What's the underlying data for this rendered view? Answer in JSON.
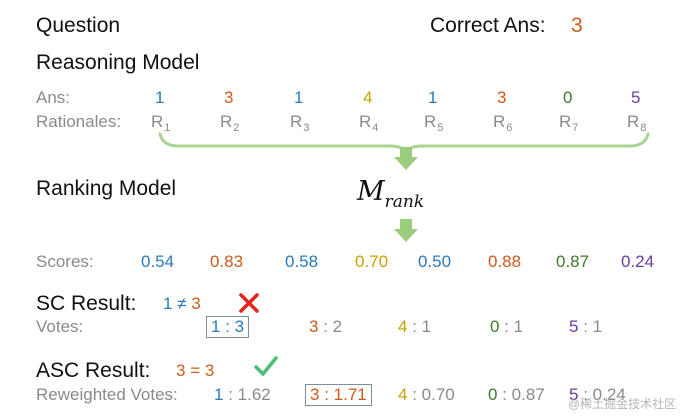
{
  "header": {
    "question_label": "Question",
    "correct_label": "Correct Ans:",
    "correct_value": "3"
  },
  "reasoning": {
    "title": "Reasoning Model",
    "ans_label": "Ans:",
    "rationales_label": "Rationales:",
    "answers": [
      "1",
      "3",
      "1",
      "4",
      "1",
      "3",
      "0",
      "5"
    ],
    "rationale_letter": "R",
    "rationale_indices": [
      "1",
      "2",
      "3",
      "4",
      "5",
      "6",
      "7",
      "8"
    ]
  },
  "ranking": {
    "title": "Ranking Model",
    "model_symbol": "M",
    "model_subscript": "rank",
    "scores_label": "Scores:",
    "scores": [
      "0.54",
      "0.83",
      "0.58",
      "0.70",
      "0.50",
      "0.88",
      "0.87",
      "0.24"
    ]
  },
  "sc": {
    "title": "SC Result:",
    "cmp_left": "1",
    "cmp_op": "≠",
    "cmp_right": "3",
    "status_icon": "cross-icon",
    "votes_label": "Votes:",
    "votes": [
      {
        "answer": "1",
        "sep": " : ",
        "value": "3",
        "boxed": true
      },
      {
        "answer": "3",
        "sep": " : ",
        "value": "2",
        "boxed": false
      },
      {
        "answer": "4",
        "sep": " : ",
        "value": "1",
        "boxed": false
      },
      {
        "answer": "0",
        "sep": " : ",
        "value": "1",
        "boxed": false
      },
      {
        "answer": "5",
        "sep": " : ",
        "value": "1",
        "boxed": false
      }
    ]
  },
  "asc": {
    "title": "ASC Result:",
    "cmp_left": "3",
    "cmp_op": "=",
    "cmp_right": "3",
    "status_icon": "check-icon",
    "votes_label": "Reweighted Votes:",
    "votes": [
      {
        "answer": "1",
        "sep": " : ",
        "value": "1.62",
        "boxed": false
      },
      {
        "answer": "3",
        "sep": " : ",
        "value": "1.71",
        "boxed": true
      },
      {
        "answer": "4",
        "sep": " : ",
        "value": "0.70",
        "boxed": false
      },
      {
        "answer": "0",
        "sep": " : ",
        "value": "0.87",
        "boxed": false
      },
      {
        "answer": "5",
        "sep": " : ",
        "value": "0.24",
        "boxed": false
      }
    ]
  },
  "colors": {
    "answer_1": "#2b7bba",
    "answer_3": "#cc5a1a",
    "answer_4": "#c9a200",
    "answer_0": "#3f7a2a",
    "answer_5": "#6a3d9a",
    "arrow_green": "#9acd7e",
    "cross_red": "#e0261d",
    "check_green": "#4bbf7a"
  },
  "watermark": "@稀土掘金技术社区"
}
